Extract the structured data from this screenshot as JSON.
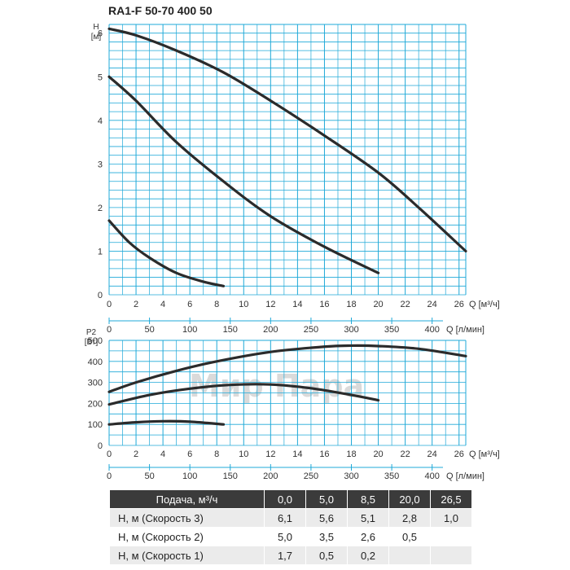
{
  "title": "RA1-F 50-70 400 50",
  "watermark": "Мир Пара",
  "colors": {
    "grid": "#1fa9d8",
    "curve": "#2b2b2b",
    "table_header": "#3b3b3b"
  },
  "chart_data": [
    {
      "type": "line",
      "ylabel": "H\n[м]",
      "xlabel": "Q [м³/ч]",
      "xlim": [
        0,
        26.5
      ],
      "ylim": [
        0,
        6.2
      ],
      "x_ticks": [
        0,
        2,
        4,
        6,
        8,
        10,
        12,
        14,
        16,
        18,
        20,
        22,
        24,
        26
      ],
      "y_ticks": [
        0,
        1,
        2,
        3,
        4,
        5,
        6
      ],
      "secondary_x_label": "Q [л/мин]",
      "secondary_x_ticks": [
        0,
        50,
        100,
        150,
        200,
        250,
        300,
        350,
        400
      ],
      "grid": true,
      "series": [
        {
          "name": "Скорость 3",
          "x": [
            0,
            2,
            5,
            8.5,
            12,
            16,
            20,
            23,
            26.5
          ],
          "y": [
            6.1,
            5.95,
            5.6,
            5.1,
            4.45,
            3.65,
            2.8,
            2.0,
            1.0
          ]
        },
        {
          "name": "Скорость 2",
          "x": [
            0,
            2,
            5,
            8.5,
            12,
            16,
            20
          ],
          "y": [
            5.0,
            4.45,
            3.5,
            2.6,
            1.8,
            1.1,
            0.5
          ]
        },
        {
          "name": "Скорость 1",
          "x": [
            0,
            1.5,
            3,
            5,
            7,
            8.5
          ],
          "y": [
            1.7,
            1.2,
            0.85,
            0.5,
            0.3,
            0.2
          ]
        }
      ]
    },
    {
      "type": "line",
      "ylabel": "P2\n[Вт]",
      "xlabel": "Q [м³/ч]",
      "xlim": [
        0,
        26.5
      ],
      "ylim": [
        0,
        500
      ],
      "x_ticks": [
        0,
        2,
        4,
        6,
        8,
        10,
        12,
        14,
        16,
        18,
        20,
        22,
        24,
        26
      ],
      "y_ticks": [
        0,
        100,
        200,
        300,
        400,
        500
      ],
      "secondary_x_label": "Q [л/мин]",
      "secondary_x_ticks": [
        0,
        50,
        100,
        150,
        200,
        250,
        300,
        350,
        400
      ],
      "grid": true,
      "series": [
        {
          "name": "Скорость 3",
          "x": [
            0,
            2,
            5,
            8,
            12,
            16,
            18,
            20,
            23,
            26.5
          ],
          "y": [
            255,
            300,
            355,
            400,
            445,
            470,
            475,
            473,
            460,
            425
          ]
        },
        {
          "name": "Скорость 2",
          "x": [
            0,
            3,
            6,
            9,
            12,
            15,
            18,
            20
          ],
          "y": [
            195,
            240,
            270,
            288,
            290,
            272,
            240,
            215
          ]
        },
        {
          "name": "Скорость 1",
          "x": [
            0,
            2,
            4,
            6,
            8.5
          ],
          "y": [
            100,
            110,
            115,
            113,
            100
          ]
        }
      ]
    }
  ],
  "table": {
    "header": [
      "Подача, м³/ч",
      "0,0",
      "5,0",
      "8,5",
      "20,0",
      "26,5"
    ],
    "rows": [
      [
        "H, м (Скорость 3)",
        "6,1",
        "5,6",
        "5,1",
        "2,8",
        "1,0"
      ],
      [
        "H, м (Скорость 2)",
        "5,0",
        "3,5",
        "2,6",
        "0,5",
        ""
      ],
      [
        "H, м (Скорость 1)",
        "1,7",
        "0,5",
        "0,2",
        "",
        ""
      ]
    ]
  }
}
